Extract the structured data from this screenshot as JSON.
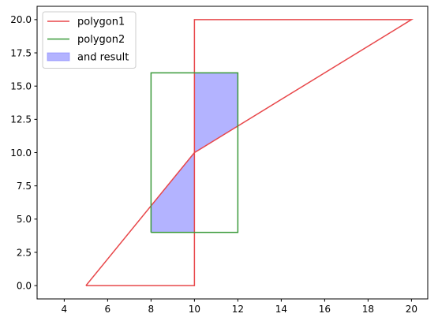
{
  "chart_data": {
    "type": "line",
    "title": "",
    "xlabel": "",
    "ylabel": "",
    "xlim": [
      2.75,
      20.75
    ],
    "ylim": [
      -1.0,
      21.0
    ],
    "x_ticks": [
      4,
      6,
      8,
      10,
      12,
      14,
      16,
      18,
      20
    ],
    "y_ticks": [
      0.0,
      2.5,
      5.0,
      7.5,
      10.0,
      12.5,
      15.0,
      17.5,
      20.0
    ],
    "x_tick_labels": [
      "4",
      "6",
      "8",
      "10",
      "12",
      "14",
      "16",
      "18",
      "20"
    ],
    "y_tick_labels": [
      "0.0",
      "2.5",
      "5.0",
      "7.5",
      "10.0",
      "12.5",
      "15.0",
      "17.5",
      "20.0"
    ],
    "grid": false,
    "legend_position": "top-left",
    "series": [
      {
        "name": "polygon1",
        "kind": "line",
        "color": "#e8474a",
        "points": [
          [
            5,
            0
          ],
          [
            10,
            0
          ],
          [
            10,
            20
          ],
          [
            20,
            20
          ],
          [
            10,
            10
          ],
          [
            5,
            0
          ]
        ]
      },
      {
        "name": "polygon2",
        "kind": "line",
        "color": "#3a9a3a",
        "points": [
          [
            8,
            4
          ],
          [
            12,
            4
          ],
          [
            12,
            16
          ],
          [
            8,
            16
          ],
          [
            8,
            4
          ]
        ]
      },
      {
        "name": "and result",
        "kind": "filled",
        "color": "#8080ff",
        "polygons": [
          [
            [
              10,
              10
            ],
            [
              10,
              16
            ],
            [
              12,
              16
            ],
            [
              12,
              12
            ],
            [
              10,
              10
            ]
          ],
          [
            [
              8,
              4
            ],
            [
              10,
              4
            ],
            [
              10,
              10
            ],
            [
              8,
              6
            ],
            [
              8,
              4
            ]
          ]
        ]
      }
    ]
  }
}
